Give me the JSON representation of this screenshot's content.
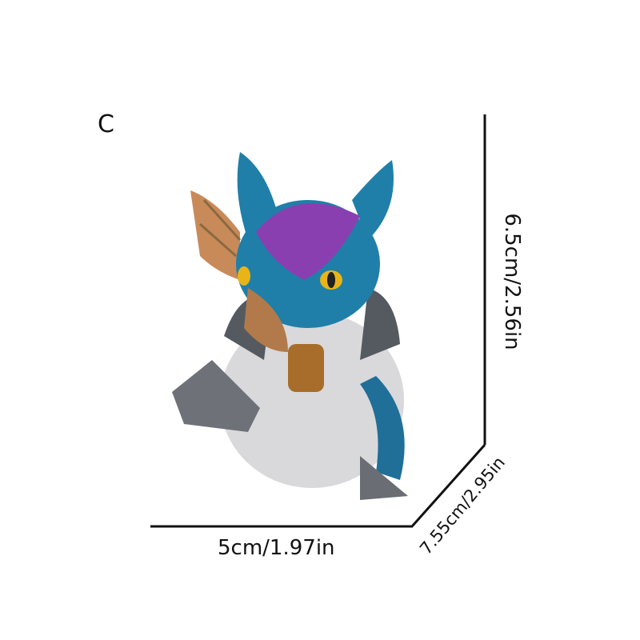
{
  "variant_label": "C",
  "dimensions": {
    "height": "6.5cm/2.56in",
    "width": "5cm/1.97in",
    "depth": "7.55cm/2.95in"
  },
  "product_image": {
    "subject": "dragon-hatching-from-egg-figurine",
    "colors": {
      "body": "#1f7fa8",
      "crest": "#8a3fb0",
      "wing": "#c98a5a",
      "egg": "#d9d9dc",
      "shell_dark": "#555a60",
      "eye": "#e8b418"
    }
  }
}
